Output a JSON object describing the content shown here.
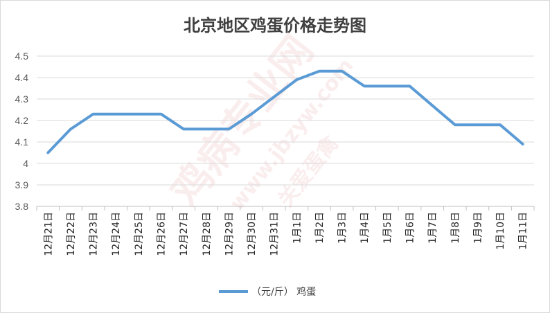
{
  "chart_data": {
    "type": "line",
    "title": "北京地区鸡蛋价格走势图",
    "categories": [
      "12月21日",
      "12月22日",
      "12月23日",
      "12月24日",
      "12月25日",
      "12月26日",
      "12月27日",
      "12月28日",
      "12月29日",
      "12月30日",
      "12月31日",
      "1月1日",
      "1月2日",
      "1月3日",
      "1月4日",
      "1月5日",
      "1月6日",
      "1月7日",
      "1月8日",
      "1月9日",
      "1月10日",
      "1月11日"
    ],
    "series": [
      {
        "name": "（元/斤） 鸡蛋",
        "color": "#5b9bd5",
        "values": [
          4.05,
          4.16,
          4.23,
          4.23,
          4.23,
          4.23,
          4.16,
          4.16,
          4.16,
          4.23,
          4.31,
          4.39,
          4.43,
          4.43,
          4.36,
          4.36,
          4.36,
          4.27,
          4.18,
          4.18,
          4.18,
          4.09
        ]
      }
    ],
    "ylim": [
      3.8,
      4.5
    ],
    "yticks": [
      "3.8",
      "3.9",
      "4",
      "4.1",
      "4.2",
      "4.3",
      "4.4",
      "4.5"
    ],
    "grid": true,
    "legend_position": "bottom"
  },
  "watermark": {
    "brand": "鸡病专业网",
    "url": "www.jbzyw.com",
    "slogan": "关爱蛋禽"
  }
}
